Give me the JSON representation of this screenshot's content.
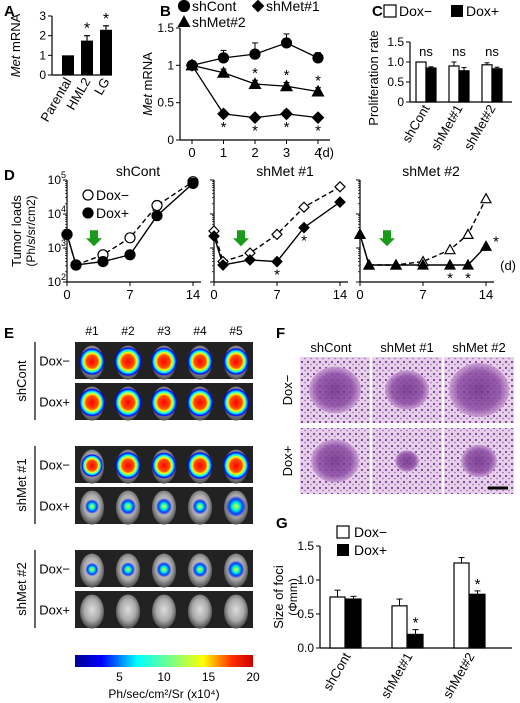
{
  "panels": {
    "A": {
      "letter": "A"
    },
    "B": {
      "letter": "B"
    },
    "C": {
      "letter": "C"
    },
    "D": {
      "letter": "D"
    },
    "E": {
      "letter": "E"
    },
    "F": {
      "letter": "F"
    },
    "G": {
      "letter": "G"
    }
  },
  "colors": {
    "black": "#000000",
    "white": "#ffffff",
    "arrow": "#1a9a1a",
    "tissue": "#b77cc0",
    "mouse_bg": "#222222"
  },
  "chart_data": [
    {
      "id": "A",
      "type": "bar",
      "categories": [
        "Parental",
        "HML2",
        "LG"
      ],
      "values": [
        1.0,
        1.75,
        2.3
      ],
      "errors": [
        0,
        0.25,
        0.2
      ],
      "significant": [
        false,
        true,
        true
      ],
      "ylabel_italic": "Met",
      "ylabel_rest": " mRNA",
      "ylim": [
        0,
        3
      ],
      "yticks": [
        "0",
        "1",
        "2",
        "3"
      ]
    },
    {
      "id": "B",
      "type": "line",
      "x": [
        0,
        1,
        2,
        3,
        4
      ],
      "xlabel": "(d)",
      "xticks": [
        "0",
        "1",
        "2",
        "3",
        "4"
      ],
      "ylim": [
        0,
        1.5
      ],
      "yticks": [
        "0",
        "0.5",
        "1",
        "1.5"
      ],
      "ylabel_italic": "Met",
      "ylabel_rest": " mRNA",
      "series": [
        {
          "name": "shCont",
          "marker": "circle",
          "values": [
            1.0,
            1.1,
            1.15,
            1.3,
            1.1
          ],
          "errors": [
            0.05,
            0.1,
            0.15,
            0.12,
            0.07
          ],
          "stars": [
            false,
            false,
            false,
            false,
            false
          ]
        },
        {
          "name": "shMet#1",
          "marker": "diamond",
          "values": [
            1.0,
            0.35,
            0.3,
            0.35,
            0.3
          ],
          "errors": [
            0,
            0.04,
            0.04,
            0.05,
            0.04
          ],
          "stars": [
            false,
            true,
            true,
            true,
            true
          ]
        },
        {
          "name": "shMet#2",
          "marker": "triangle",
          "values": [
            1.0,
            0.9,
            0.75,
            0.72,
            0.65
          ],
          "errors": [
            0.05,
            0.05,
            0.05,
            0.05,
            0.05
          ],
          "stars": [
            false,
            false,
            true,
            true,
            true
          ]
        }
      ]
    },
    {
      "id": "C",
      "type": "bar",
      "categories": [
        "shCont",
        "shMet#1",
        "shMet#2"
      ],
      "ylabel": "Proliferation rate",
      "ylim": [
        0,
        1.5
      ],
      "yticks": [
        "0",
        "0.5",
        "1.0",
        "1.5"
      ],
      "series": [
        {
          "name": "Dox−",
          "fill": "white",
          "values": [
            1.0,
            0.9,
            0.93
          ],
          "errors": [
            0,
            0.1,
            0.05
          ]
        },
        {
          "name": "Dox+",
          "fill": "black",
          "values": [
            0.85,
            0.78,
            0.83
          ],
          "errors": [
            0.03,
            0.08,
            0.04
          ]
        }
      ],
      "annotations": [
        "ns",
        "ns",
        "ns"
      ]
    },
    {
      "id": "D",
      "type": "line",
      "scale": "log",
      "ylabel": "Tumor loads",
      "ylabel_unit": "(Ph/s/sr/cm2)",
      "yticks": [
        "10²",
        "10³",
        "10⁴",
        "10⁵"
      ],
      "ylim_exp": [
        2,
        5
      ],
      "xlim": [
        0,
        14
      ],
      "xticks": [
        "0",
        "7",
        "14"
      ],
      "xlabel": "(d)",
      "legend": [
        "Dox−",
        "Dox+"
      ],
      "subpanels": [
        {
          "title": "shCont",
          "x": [
            0,
            1,
            4,
            7,
            10,
            14
          ],
          "doxminus": [
            3.4,
            2.5,
            2.8,
            3.3,
            4.25,
            4.95
          ],
          "doxplus": [
            3.4,
            2.5,
            2.6,
            2.8,
            3.95,
            4.9
          ],
          "arrow_day": 3,
          "stars": []
        },
        {
          "title": "shMet #1",
          "x": [
            0,
            1,
            4,
            7,
            10,
            14
          ],
          "doxminus": [
            3.5,
            2.6,
            2.85,
            3.4,
            4.2,
            4.8
          ],
          "doxplus": [
            3.35,
            2.5,
            2.65,
            2.6,
            3.6,
            4.35
          ],
          "arrow_day": 3,
          "stars": [
            7,
            10
          ]
        },
        {
          "title": "shMet #2",
          "x": [
            0,
            1,
            4,
            7,
            10,
            12,
            14
          ],
          "doxminus": [
            3.4,
            2.5,
            2.5,
            2.6,
            2.95,
            3.4,
            4.45
          ],
          "doxplus": [
            3.4,
            2.5,
            2.5,
            2.5,
            2.5,
            2.5,
            3.05
          ],
          "arrow_day": 3,
          "stars": [
            10,
            12,
            14
          ]
        }
      ]
    },
    {
      "id": "G",
      "type": "bar",
      "categories": [
        "shCont",
        "shMet#1",
        "shMet#2"
      ],
      "ylabel": "Size of foci",
      "ylabel_unit": "(Φmm)",
      "ylim": [
        0,
        1.5
      ],
      "yticks": [
        "0.0",
        "0.5",
        "1.0",
        "1.5"
      ],
      "series": [
        {
          "name": "Dox−",
          "fill": "white",
          "values": [
            0.75,
            0.62,
            1.25
          ],
          "errors": [
            0.1,
            0.1,
            0.08
          ]
        },
        {
          "name": "Dox+",
          "fill": "black",
          "values": [
            0.72,
            0.2,
            0.79
          ],
          "errors": [
            0.04,
            0.07,
            0.05
          ]
        }
      ],
      "stars": [
        false,
        true,
        true
      ]
    }
  ],
  "panelE": {
    "columns": [
      "#1",
      "#2",
      "#3",
      "#4",
      "#5"
    ],
    "groups": [
      "shCont",
      "shMet #1",
      "shMet #2"
    ],
    "rows": [
      "Dox−",
      "Dox+"
    ],
    "colorbar_ticks": [
      "5",
      "10",
      "15",
      "20"
    ],
    "colorbar_label": "Ph/sec/cm²/Sr (x10⁴)",
    "signal": [
      [
        0.9,
        1,
        0.95,
        0.9,
        0.9
      ],
      [
        0.95,
        1,
        0.95,
        0.95,
        0.95
      ],
      [
        0.7,
        0.9,
        0.85,
        0.9,
        0.95
      ],
      [
        0.3,
        0.4,
        0.4,
        0.35,
        0.6
      ],
      [
        0.25,
        0.3,
        0.35,
        0.35,
        0.45
      ],
      [
        0,
        0,
        0,
        0,
        0
      ]
    ]
  },
  "panelF": {
    "columns": [
      "shCont",
      "shMet #1",
      "shMet #2"
    ],
    "rows": [
      "Dox−",
      "Dox+"
    ]
  }
}
